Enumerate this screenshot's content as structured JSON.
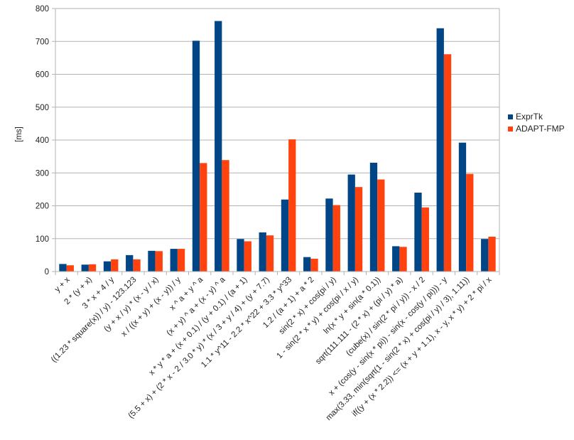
{
  "chart_data": {
    "type": "bar",
    "title": "",
    "xlabel": "",
    "ylabel": "[ms]",
    "ylim": [
      0,
      800
    ],
    "yticks": [
      "0",
      "100",
      "200",
      "300",
      "400",
      "500",
      "600",
      "700",
      "800"
    ],
    "grid": true,
    "legend_position": "right",
    "categories": [
      "y + x",
      "2 * (y + x)",
      "3 * x + 4 / y",
      "((1.23 * square(x)) / y) - 123.123",
      "(y + x / y) * (x - y / x)",
      "x / ((x + y) + (x - y)) / y",
      "x ^ a + y ^ a",
      "(x + y) ^ a + (x - y) ^ a",
      "x * y * a + (x + 0.1) / (y + 0.1) / (a + 1)",
      "(5.5 + x) + (2 * x - 2 / 3.0 * y) * (x / 3 + y / 4) + (y + 7.7)",
      "1.1 * y^11 - 2.2 * x^22 + 3.3 * y^33",
      "1.2 / (a + 1) + a * 2",
      "sin(2 * x) + cos(pi / y)",
      "1 - sin(2 * x * y) + cos(pi / x / y)",
      "ln(x * y + sin(a * 0.1))",
      "sqrt(111.111 - (2 * x) + (pi / y) * a)",
      "(cube(x) / sin(2 * pi / y)) - x / 2",
      "x + (cos(y - sin(x * pi)) - sin(x - cos(y / pi))) - y",
      "max(3.33, min(sqrt(1 - sin(2 * x) + cos(pi / y) / 3), 1.11))",
      "if((y + (x * 2.2)) <= (x + y + 1.1), x - y, x * y) + 2 * pi / x"
    ],
    "series": [
      {
        "name": "ExprTk",
        "color": "#004586",
        "values": [
          23,
          21,
          31,
          50,
          63,
          69,
          702,
          762,
          99,
          119,
          219,
          44,
          222,
          295,
          331,
          77,
          240,
          740,
          392,
          99
        ]
      },
      {
        "name": "ADAPT-FMP",
        "color": "#ff420e",
        "values": [
          19,
          22,
          37,
          37,
          62,
          69,
          330,
          339,
          92,
          110,
          402,
          39,
          202,
          257,
          280,
          75,
          195,
          661,
          297,
          106
        ]
      }
    ]
  }
}
